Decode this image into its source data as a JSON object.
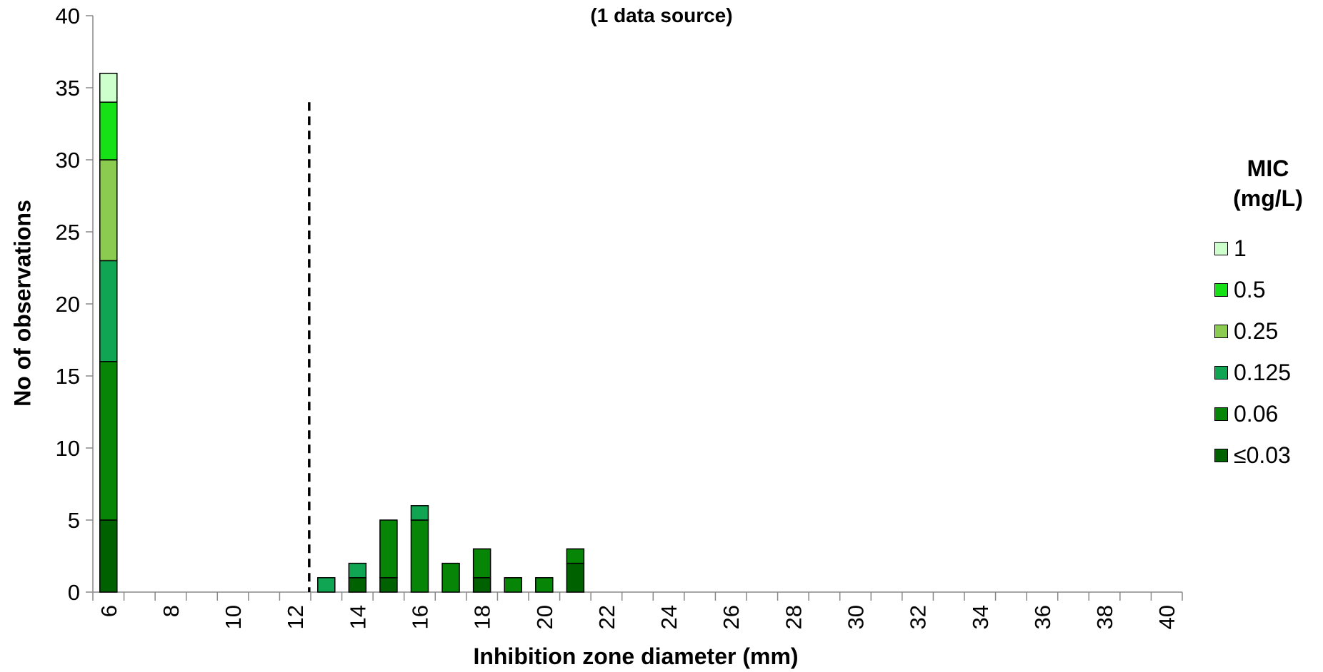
{
  "chart_data": {
    "type": "bar",
    "stacked": true,
    "title": "(1 data source)",
    "xlabel": "Inhibition zone diameter (mm)",
    "ylabel": "No of observations",
    "ylim": [
      0,
      40
    ],
    "yticks": [
      0,
      5,
      10,
      15,
      20,
      25,
      30,
      35,
      40
    ],
    "xlim": [
      6,
      40
    ],
    "xticks": [
      6,
      8,
      10,
      12,
      14,
      16,
      18,
      20,
      22,
      24,
      26,
      28,
      30,
      32,
      34,
      36,
      38,
      40
    ],
    "breakpoint_x": 12,
    "legend_title": [
      "MIC",
      "(mg/L)"
    ],
    "legend_position": "right",
    "grid": false,
    "series": [
      {
        "name": "≤0.03",
        "color": "#006100",
        "points": [
          {
            "x": 6,
            "y": 5
          },
          {
            "x": 14,
            "y": 1
          },
          {
            "x": 15,
            "y": 1
          },
          {
            "x": 18,
            "y": 1
          },
          {
            "x": 21,
            "y": 2
          }
        ]
      },
      {
        "name": "0.06",
        "color": "#068506",
        "points": [
          {
            "x": 6,
            "y": 11
          },
          {
            "x": 14,
            "y": 0
          },
          {
            "x": 15,
            "y": 4
          },
          {
            "x": 16,
            "y": 5
          },
          {
            "x": 17,
            "y": 2
          },
          {
            "x": 18,
            "y": 2
          },
          {
            "x": 19,
            "y": 1
          },
          {
            "x": 20,
            "y": 1
          },
          {
            "x": 21,
            "y": 1
          }
        ]
      },
      {
        "name": "0.125",
        "color": "#10A553",
        "points": [
          {
            "x": 6,
            "y": 7
          },
          {
            "x": 13,
            "y": 1
          },
          {
            "x": 14,
            "y": 1
          },
          {
            "x": 16,
            "y": 1
          }
        ]
      },
      {
        "name": "0.25",
        "color": "#8BCB4F",
        "points": [
          {
            "x": 6,
            "y": 7
          }
        ]
      },
      {
        "name": "0.5",
        "color": "#16E016",
        "points": [
          {
            "x": 6,
            "y": 4
          }
        ]
      },
      {
        "name": "1",
        "color": "#CCFFCC",
        "points": [
          {
            "x": 6,
            "y": 2
          }
        ]
      }
    ]
  }
}
